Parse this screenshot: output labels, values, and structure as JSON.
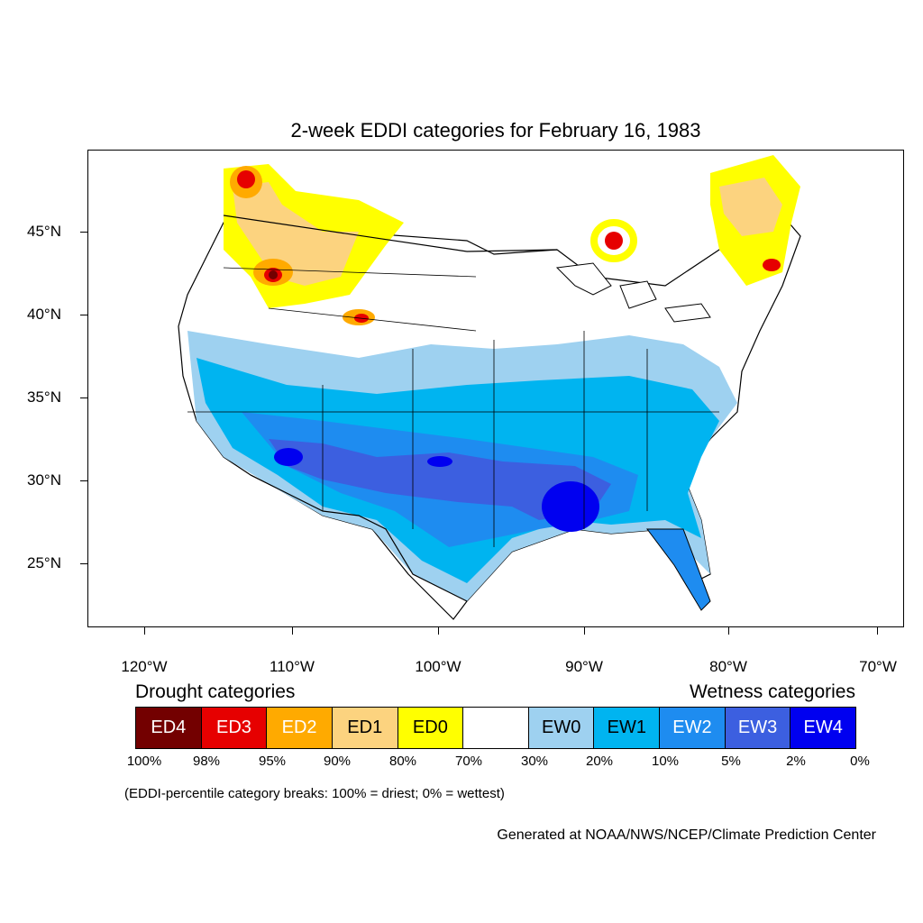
{
  "title": "2-week EDDI categories for February 16, 1983",
  "axes": {
    "lat_labels": [
      "45°N",
      "40°N",
      "35°N",
      "30°N",
      "25°N"
    ],
    "lon_labels": [
      "120°W",
      "110°W",
      "100°W",
      "90°W",
      "80°W",
      "70°W"
    ]
  },
  "legend": {
    "drought_heading": "Drought categories",
    "wetness_heading": "Wetness categories",
    "categories": [
      {
        "label": "ED4",
        "color": "#730000",
        "text_color": "#ffffff"
      },
      {
        "label": "ED3",
        "color": "#e60000",
        "text_color": "#ffffff"
      },
      {
        "label": "ED2",
        "color": "#ffaa00",
        "text_color": "#ffffff"
      },
      {
        "label": "ED1",
        "color": "#fcd37f",
        "text_color": "#000000"
      },
      {
        "label": "ED0",
        "color": "#ffff00",
        "text_color": "#000000"
      },
      {
        "label": "",
        "color": "#ffffff",
        "text_color": "#000000"
      },
      {
        "label": "EW0",
        "color": "#9ed1f0",
        "text_color": "#000000"
      },
      {
        "label": "EW1",
        "color": "#00b4f0",
        "text_color": "#000000"
      },
      {
        "label": "EW2",
        "color": "#1e8cf0",
        "text_color": "#ffffff"
      },
      {
        "label": "EW3",
        "color": "#3c5fe0",
        "text_color": "#ffffff"
      },
      {
        "label": "EW4",
        "color": "#0000f0",
        "text_color": "#ffffff"
      }
    ],
    "percent_breaks": [
      "100%",
      "98%",
      "95%",
      "90%",
      "80%",
      "70%",
      "30%",
      "20%",
      "10%",
      "5%",
      "2%",
      "0%"
    ],
    "breaks_note": "(EDDI-percentile category breaks: 100% = driest; 0% = wettest)"
  },
  "credit": "Generated at NOAA/NWS/NCEP/Climate Prediction Center"
}
